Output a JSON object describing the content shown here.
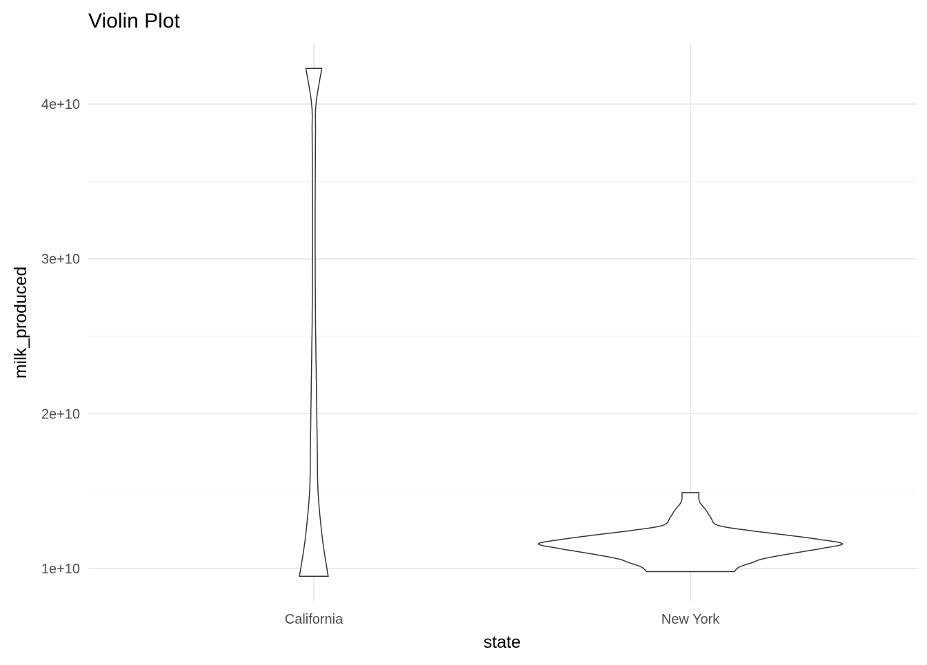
{
  "chart_data": {
    "type": "violin",
    "title": "Violin Plot",
    "xlabel": "state",
    "ylabel": "milk_produced",
    "categories": [
      "California",
      "New York"
    ],
    "y_ticks": [
      {
        "value": 10000000000,
        "label": "1e+10"
      },
      {
        "value": 20000000000,
        "label": "2e+10"
      },
      {
        "value": 30000000000,
        "label": "3e+10"
      },
      {
        "value": 40000000000,
        "label": "4e+10"
      }
    ],
    "ylim": [
      7500000000,
      44000000000
    ],
    "grid": true,
    "violins": [
      {
        "category": "California",
        "min": 9500000000,
        "max": 42300000000,
        "density": [
          [
            9500000000,
            0.085
          ],
          [
            12000000000,
            0.05
          ],
          [
            15000000000,
            0.025
          ],
          [
            18000000000,
            0.02
          ],
          [
            22000000000,
            0.015
          ],
          [
            26000000000,
            0.01
          ],
          [
            30000000000,
            0.008
          ],
          [
            34000000000,
            0.008
          ],
          [
            38000000000,
            0.01
          ],
          [
            40000000000,
            0.013
          ],
          [
            42300000000,
            0.047
          ]
        ]
      },
      {
        "category": "New York",
        "min": 9800000000,
        "max": 14900000000,
        "density": [
          [
            9800000000,
            0.26
          ],
          [
            10100000000,
            0.29
          ],
          [
            10400000000,
            0.37
          ],
          [
            10600000000,
            0.42
          ],
          [
            10900000000,
            0.56
          ],
          [
            11300000000,
            0.78
          ],
          [
            11600000000,
            0.9
          ],
          [
            11900000000,
            0.75
          ],
          [
            12200000000,
            0.54
          ],
          [
            12500000000,
            0.32
          ],
          [
            12800000000,
            0.16
          ],
          [
            13300000000,
            0.12
          ],
          [
            13800000000,
            0.09
          ],
          [
            14200000000,
            0.06
          ],
          [
            14500000000,
            0.05
          ],
          [
            14900000000,
            0.05
          ]
        ]
      }
    ]
  }
}
